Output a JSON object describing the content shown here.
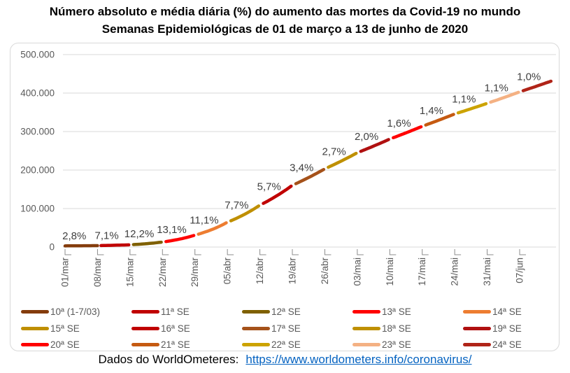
{
  "title": {
    "line1": "Número absoluto e média diária (%) do aumento das mortes da Covid-19 no mundo",
    "line2": "Semanas Epidemiológicas de 01 de março a 13 de junho de 2020"
  },
  "chart_data": {
    "type": "line",
    "title": "Número absoluto e média diária (%) do aumento das mortes da Covid-19 no mundo",
    "subtitle": "Semanas Epidemiológicas de 01 de março a 13 de junho de 2020",
    "xlabel": "",
    "ylabel": "",
    "ylim": [
      0,
      500000
    ],
    "grid": "horizontal",
    "legend_position": "bottom",
    "week_length_days": 7,
    "days_total": 104,
    "x_tick_labels": [
      "01/mar",
      "08/mar",
      "15/mar",
      "22/mar",
      "29/mar",
      "05/abr",
      "12/abr",
      "19/abr",
      "26/abr",
      "03/mai",
      "10/mai",
      "17/mai",
      "24/mai",
      "31/mai",
      "07/jun"
    ],
    "y_axis": {
      "min": 0,
      "max": 500000,
      "step": 100000,
      "tick_labels_top_to_bottom": [
        "500.000",
        "400.000",
        "300.000",
        "200.000",
        "100.000",
        "0"
      ],
      "tick_values": [
        0,
        100000,
        200000,
        300000,
        400000,
        500000
      ]
    },
    "series": [
      {
        "name": "10ª (1-7/03)",
        "color": "#843C0C",
        "pct_label": "2,8%",
        "start_value": 3000,
        "end_value": 3700
      },
      {
        "name": "11ª SE",
        "color": "#C00000",
        "pct_label": "7,1%",
        "start_value": 3700,
        "end_value": 5800
      },
      {
        "name": "12ª SE",
        "color": "#7F6000",
        "pct_label": "12,2%",
        "start_value": 5800,
        "end_value": 13000
      },
      {
        "name": "13ª SE",
        "color": "#FF0000",
        "pct_label": "13,1%",
        "start_value": 13000,
        "end_value": 31000
      },
      {
        "name": "14ª SE",
        "color": "#ED7D31",
        "pct_label": "11,1%",
        "start_value": 31000,
        "end_value": 64500
      },
      {
        "name": "15ª SE",
        "color": "#BF8F00",
        "pct_label": "7,7%",
        "start_value": 64500,
        "end_value": 108800
      },
      {
        "name": "16ª SE",
        "color": "#C00000",
        "pct_label": "5,7%",
        "start_value": 108800,
        "end_value": 160400
      },
      {
        "name": "17ª SE",
        "color": "#A5521A",
        "pct_label": "3,4%",
        "start_value": 160400,
        "end_value": 203200
      },
      {
        "name": "18ª SE",
        "color": "#BF9000",
        "pct_label": "2,7%",
        "start_value": 203200,
        "end_value": 245000
      },
      {
        "name": "19ª SE",
        "color": "#B01010",
        "pct_label": "2,0%",
        "start_value": 245000,
        "end_value": 280600
      },
      {
        "name": "20ª SE",
        "color": "#FF0000",
        "pct_label": "1,6%",
        "start_value": 280600,
        "end_value": 313700
      },
      {
        "name": "21ª SE",
        "color": "#C55A11",
        "pct_label": "1,4%",
        "start_value": 313700,
        "end_value": 345700
      },
      {
        "name": "22ª SE",
        "color": "#CCA300",
        "pct_label": "1,1%",
        "start_value": 345700,
        "end_value": 373300
      },
      {
        "name": "23ª SE",
        "color": "#F4B183",
        "pct_label": "1,1%",
        "start_value": 373300,
        "end_value": 403100
      },
      {
        "name": "24ª SE",
        "color": "#B02418",
        "pct_label": "1,0%",
        "start_value": 403100,
        "end_value": 432000
      }
    ]
  },
  "footer": {
    "text": "Dados do WorldOmeteres:",
    "link_text": "https://www.worldometers.info/coronavirus/",
    "link_url": "https://www.worldometers.info/coronavirus/",
    "link_color": "#0563C1"
  }
}
